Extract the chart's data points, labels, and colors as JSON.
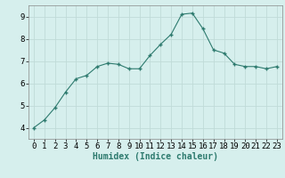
{
  "x": [
    0,
    1,
    2,
    3,
    4,
    5,
    6,
    7,
    8,
    9,
    10,
    11,
    12,
    13,
    14,
    15,
    16,
    17,
    18,
    19,
    20,
    21,
    22,
    23
  ],
  "y": [
    4.0,
    4.35,
    4.9,
    5.6,
    6.2,
    6.35,
    6.75,
    6.9,
    6.85,
    6.65,
    6.65,
    7.25,
    7.75,
    8.2,
    9.1,
    9.15,
    8.45,
    7.5,
    7.35,
    6.85,
    6.75,
    6.75,
    6.65,
    6.75
  ],
  "xlabel": "Humidex (Indice chaleur)",
  "ylim": [
    3.5,
    9.5
  ],
  "xlim": [
    -0.5,
    23.5
  ],
  "yticks": [
    4,
    5,
    6,
    7,
    8,
    9
  ],
  "xticks": [
    0,
    1,
    2,
    3,
    4,
    5,
    6,
    7,
    8,
    9,
    10,
    11,
    12,
    13,
    14,
    15,
    16,
    17,
    18,
    19,
    20,
    21,
    22,
    23
  ],
  "line_color": "#2d7a6e",
  "marker": "+",
  "marker_size": 3.5,
  "bg_color": "#d6efed",
  "grid_color": "#c0dbd8",
  "xlabel_fontsize": 7,
  "tick_fontsize": 6.5,
  "xlabel_bold": true
}
